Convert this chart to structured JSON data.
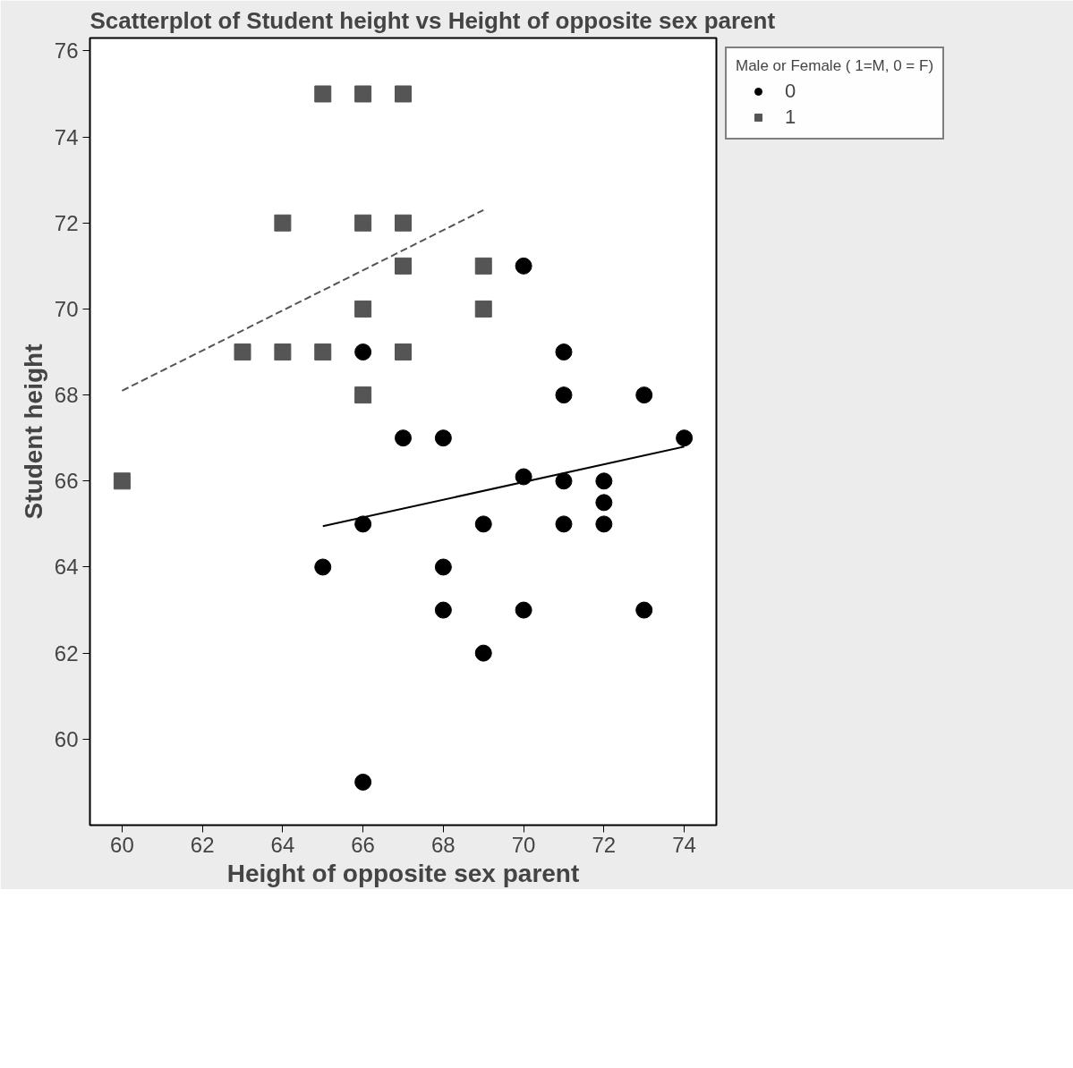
{
  "chart_data": {
    "type": "scatter",
    "title": "Scatterplot of Student height vs Height of opposite sex parent",
    "xlabel": "Height of opposite sex parent",
    "ylabel": "Student height",
    "legend_title": "Male or Female ( 1=M, 0 = F)",
    "xlim": [
      59.2,
      74.8
    ],
    "ylim": [
      58,
      76.3
    ],
    "xticks": [
      60,
      62,
      64,
      66,
      68,
      70,
      72,
      74
    ],
    "yticks": [
      60,
      62,
      64,
      66,
      68,
      70,
      72,
      74,
      76
    ],
    "grid": false,
    "legend": "top right",
    "series": [
      {
        "name": "0",
        "color": "#000000",
        "marker": "circle",
        "x": [
          66,
          70,
          71,
          71,
          73,
          67,
          68,
          74,
          70,
          71,
          72,
          72,
          66,
          69,
          71,
          72,
          65,
          68,
          68,
          70,
          73,
          69,
          66
        ],
        "values": [
          69,
          71,
          69,
          68,
          68,
          67,
          67,
          67,
          66.1,
          66,
          66,
          65.5,
          65,
          65,
          65,
          65,
          64,
          64,
          63,
          63,
          63,
          62,
          59
        ]
      },
      {
        "name": "1",
        "color": "#555555",
        "marker": "square",
        "x": [
          65,
          66,
          67,
          64,
          66,
          67,
          67,
          69,
          66,
          69,
          63,
          64,
          65,
          67,
          66,
          60
        ],
        "values": [
          75,
          75,
          75,
          72,
          72,
          72,
          71,
          71,
          70,
          70,
          69,
          69,
          69,
          69,
          68,
          66
        ]
      },
      {
        "type": "line",
        "color": "#000000",
        "line_style": "solid",
        "x": [
          65,
          74
        ],
        "values": [
          64.95,
          66.8
        ]
      },
      {
        "type": "line",
        "color": "#555555",
        "line_style": "dashed",
        "x": [
          60,
          69
        ],
        "values": [
          68.1,
          72.3
        ]
      }
    ]
  }
}
